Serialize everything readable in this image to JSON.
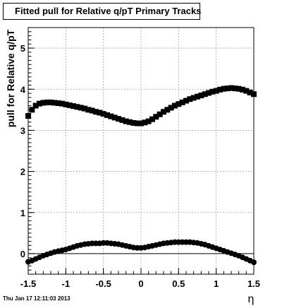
{
  "chart_data": {
    "type": "scatter",
    "title": "Fitted pull for Relative q/pT  Primary Tracks",
    "xlabel": "η",
    "ylabel": "pull for Relative q/pT",
    "xlim": [
      -1.5,
      1.5
    ],
    "ylim": [
      -0.5,
      5.5
    ],
    "xticks": [
      "-1.5",
      "-1",
      "-0.5",
      "0",
      "0.5",
      "1",
      "1.5"
    ],
    "yticks": [
      "0",
      "1",
      "2",
      "3",
      "4",
      "5"
    ],
    "grid": true,
    "series": [
      {
        "marker": "square",
        "color": "#000000",
        "x": [
          -1.5,
          -1.45,
          -1.4,
          -1.35,
          -1.3,
          -1.25,
          -1.2,
          -1.15,
          -1.1,
          -1.05,
          -1.0,
          -0.95,
          -0.9,
          -0.85,
          -0.8,
          -0.75,
          -0.7,
          -0.65,
          -0.6,
          -0.55,
          -0.5,
          -0.45,
          -0.4,
          -0.35,
          -0.3,
          -0.25,
          -0.2,
          -0.15,
          -0.1,
          -0.05,
          0.0,
          0.05,
          0.1,
          0.15,
          0.2,
          0.25,
          0.3,
          0.35,
          0.4,
          0.45,
          0.5,
          0.55,
          0.6,
          0.65,
          0.7,
          0.75,
          0.8,
          0.85,
          0.9,
          0.95,
          1.0,
          1.05,
          1.1,
          1.15,
          1.2,
          1.25,
          1.3,
          1.35,
          1.4,
          1.45,
          1.5
        ],
        "y": [
          3.35,
          3.5,
          3.6,
          3.65,
          3.67,
          3.68,
          3.68,
          3.67,
          3.66,
          3.65,
          3.63,
          3.61,
          3.59,
          3.57,
          3.55,
          3.53,
          3.5,
          3.48,
          3.45,
          3.43,
          3.4,
          3.37,
          3.34,
          3.31,
          3.28,
          3.25,
          3.22,
          3.2,
          3.18,
          3.17,
          3.17,
          3.19,
          3.22,
          3.27,
          3.33,
          3.39,
          3.45,
          3.5,
          3.55,
          3.6,
          3.64,
          3.68,
          3.72,
          3.76,
          3.79,
          3.82,
          3.85,
          3.88,
          3.91,
          3.94,
          3.96,
          3.99,
          4.01,
          4.02,
          4.03,
          4.02,
          4.01,
          3.99,
          3.96,
          3.92,
          3.88
        ]
      },
      {
        "marker": "circle",
        "color": "#000000",
        "x": [
          -1.5,
          -1.45,
          -1.4,
          -1.35,
          -1.3,
          -1.25,
          -1.2,
          -1.15,
          -1.1,
          -1.05,
          -1.0,
          -0.95,
          -0.9,
          -0.85,
          -0.8,
          -0.75,
          -0.7,
          -0.65,
          -0.6,
          -0.55,
          -0.5,
          -0.45,
          -0.4,
          -0.35,
          -0.3,
          -0.25,
          -0.2,
          -0.15,
          -0.1,
          -0.05,
          0.0,
          0.05,
          0.1,
          0.15,
          0.2,
          0.25,
          0.3,
          0.35,
          0.4,
          0.45,
          0.5,
          0.55,
          0.6,
          0.65,
          0.7,
          0.75,
          0.8,
          0.85,
          0.9,
          0.95,
          1.0,
          1.05,
          1.1,
          1.15,
          1.2,
          1.25,
          1.3,
          1.35,
          1.4,
          1.45,
          1.5
        ],
        "y": [
          -0.2,
          -0.17,
          -0.13,
          -0.09,
          -0.05,
          -0.02,
          0.01,
          0.04,
          0.06,
          0.08,
          0.1,
          0.13,
          0.16,
          0.19,
          0.21,
          0.23,
          0.24,
          0.25,
          0.25,
          0.25,
          0.26,
          0.26,
          0.25,
          0.24,
          0.23,
          0.21,
          0.19,
          0.17,
          0.15,
          0.14,
          0.14,
          0.15,
          0.17,
          0.19,
          0.21,
          0.23,
          0.25,
          0.26,
          0.27,
          0.28,
          0.28,
          0.28,
          0.28,
          0.28,
          0.27,
          0.26,
          0.24,
          0.22,
          0.19,
          0.16,
          0.13,
          0.1,
          0.07,
          0.04,
          0.01,
          -0.02,
          -0.05,
          -0.09,
          -0.13,
          -0.17,
          -0.21
        ]
      }
    ]
  },
  "timestamp": "Thu Jan 17 12:11:03 2013"
}
